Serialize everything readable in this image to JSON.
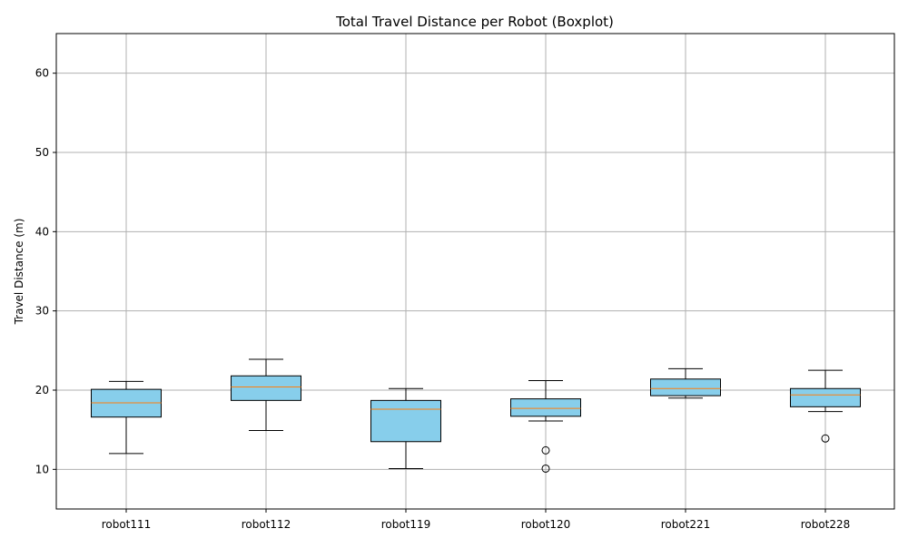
{
  "chart_data": {
    "type": "boxplot",
    "title": "Total Travel Distance per Robot (Boxplot)",
    "xlabel": "",
    "ylabel": "Travel Distance (m)",
    "ylim": [
      5,
      65
    ],
    "yticks": [
      10,
      20,
      30,
      40,
      50,
      60
    ],
    "grid": true,
    "colors": {
      "box_fill": "#87ceeb",
      "box_edge": "#000000",
      "median": "#ff7f0e",
      "grid": "#b0b0b0"
    },
    "categories": [
      "robot111",
      "robot112",
      "robot119",
      "robot120",
      "robot221",
      "robot228"
    ],
    "boxes": [
      {
        "label": "robot111",
        "whisker_low": 12.0,
        "q1": 16.6,
        "median": 18.4,
        "q3": 20.1,
        "whisker_high": 21.1,
        "outliers": []
      },
      {
        "label": "robot112",
        "whisker_low": 14.9,
        "q1": 18.7,
        "median": 20.4,
        "q3": 21.8,
        "whisker_high": 23.9,
        "outliers": []
      },
      {
        "label": "robot119",
        "whisker_low": 10.1,
        "q1": 13.5,
        "median": 17.6,
        "q3": 18.7,
        "whisker_high": 20.2,
        "outliers": []
      },
      {
        "label": "robot120",
        "whisker_low": 16.1,
        "q1": 16.7,
        "median": 17.7,
        "q3": 18.9,
        "whisker_high": 21.2,
        "outliers": [
          12.4,
          10.1
        ]
      },
      {
        "label": "robot221",
        "whisker_low": 19.0,
        "q1": 19.3,
        "median": 20.2,
        "q3": 21.4,
        "whisker_high": 22.7,
        "outliers": []
      },
      {
        "label": "robot228",
        "whisker_low": 17.3,
        "q1": 17.9,
        "median": 19.4,
        "q3": 20.2,
        "whisker_high": 22.5,
        "outliers": [
          13.9
        ]
      }
    ]
  }
}
